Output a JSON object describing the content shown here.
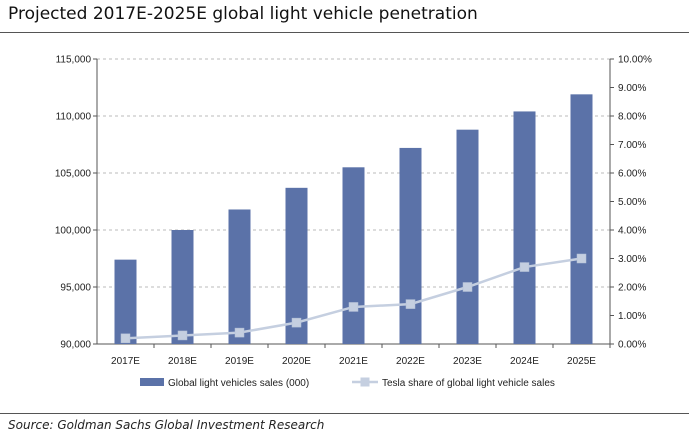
{
  "title": "Projected 2017E-2025E global light vehicle penetration",
  "source": "Source: Goldman Sachs Global Investment Research",
  "colors": {
    "bar": "#5b72a8",
    "line": "#c5cfe0",
    "marker": "#c5cfe0",
    "grid": "#bbbbbb"
  },
  "chart_data": {
    "type": "bar",
    "categories": [
      "2017E",
      "2018E",
      "2019E",
      "2020E",
      "2021E",
      "2022E",
      "2023E",
      "2024E",
      "2025E"
    ],
    "series": [
      {
        "name": "Global light vehicles sales (000)",
        "type": "bar",
        "axis": "left",
        "values": [
          97400,
          100000,
          101800,
          103700,
          105500,
          107200,
          108800,
          110400,
          111900
        ]
      },
      {
        "name": "Tesla share of global light vehicle sales",
        "type": "line",
        "axis": "right",
        "values": [
          0.2,
          0.3,
          0.4,
          0.75,
          1.3,
          1.4,
          2.0,
          2.7,
          3.0
        ]
      }
    ],
    "y_left": {
      "min": 90000,
      "max": 115000,
      "ticks": [
        "90,000",
        "95,000",
        "100,000",
        "105,000",
        "110,000",
        "115,000"
      ]
    },
    "y_right": {
      "min": 0,
      "max": 10,
      "ticks": [
        "0.00%",
        "1.00%",
        "2.00%",
        "3.00%",
        "4.00%",
        "5.00%",
        "6.00%",
        "7.00%",
        "8.00%",
        "9.00%",
        "10.00%"
      ]
    },
    "grid": true,
    "legend_position": "bottom"
  }
}
